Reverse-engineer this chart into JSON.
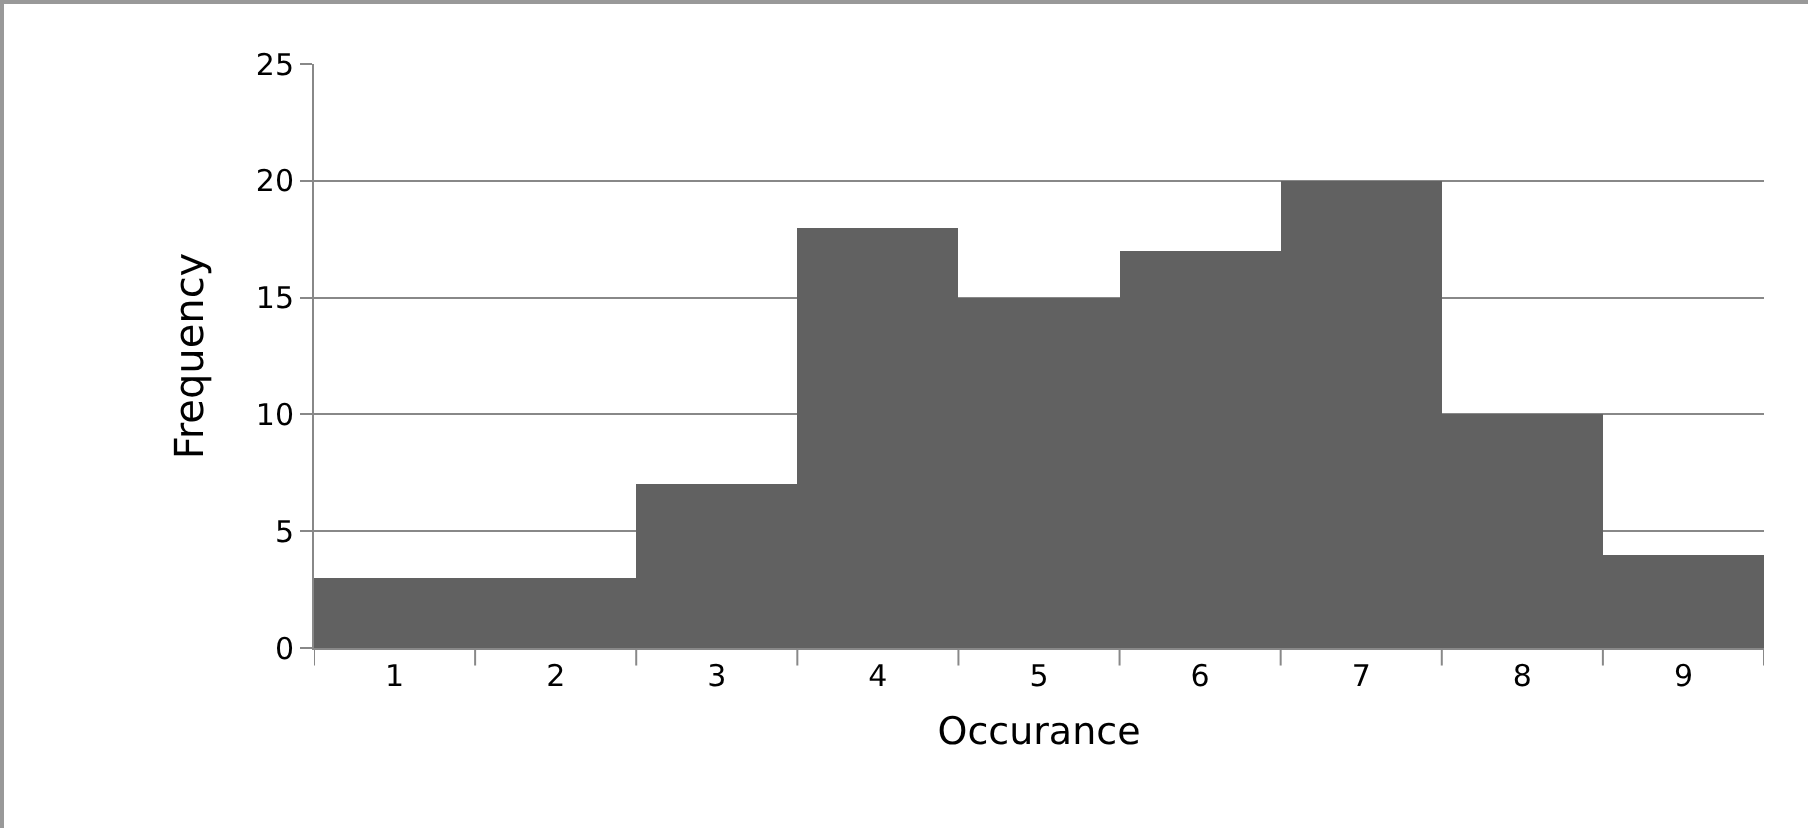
{
  "chart_data": {
    "type": "bar",
    "xlabel": "Occurance",
    "ylabel": "Frequency",
    "categories": [
      "1",
      "2",
      "3",
      "4",
      "5",
      "6",
      "7",
      "8",
      "9"
    ],
    "values": [
      3,
      3,
      7,
      18,
      15,
      17,
      20,
      10,
      4
    ],
    "color": "#616161",
    "ylim": [
      0,
      25
    ],
    "yticks": [
      0,
      5,
      10,
      15,
      20,
      25
    ],
    "grid": "y"
  }
}
